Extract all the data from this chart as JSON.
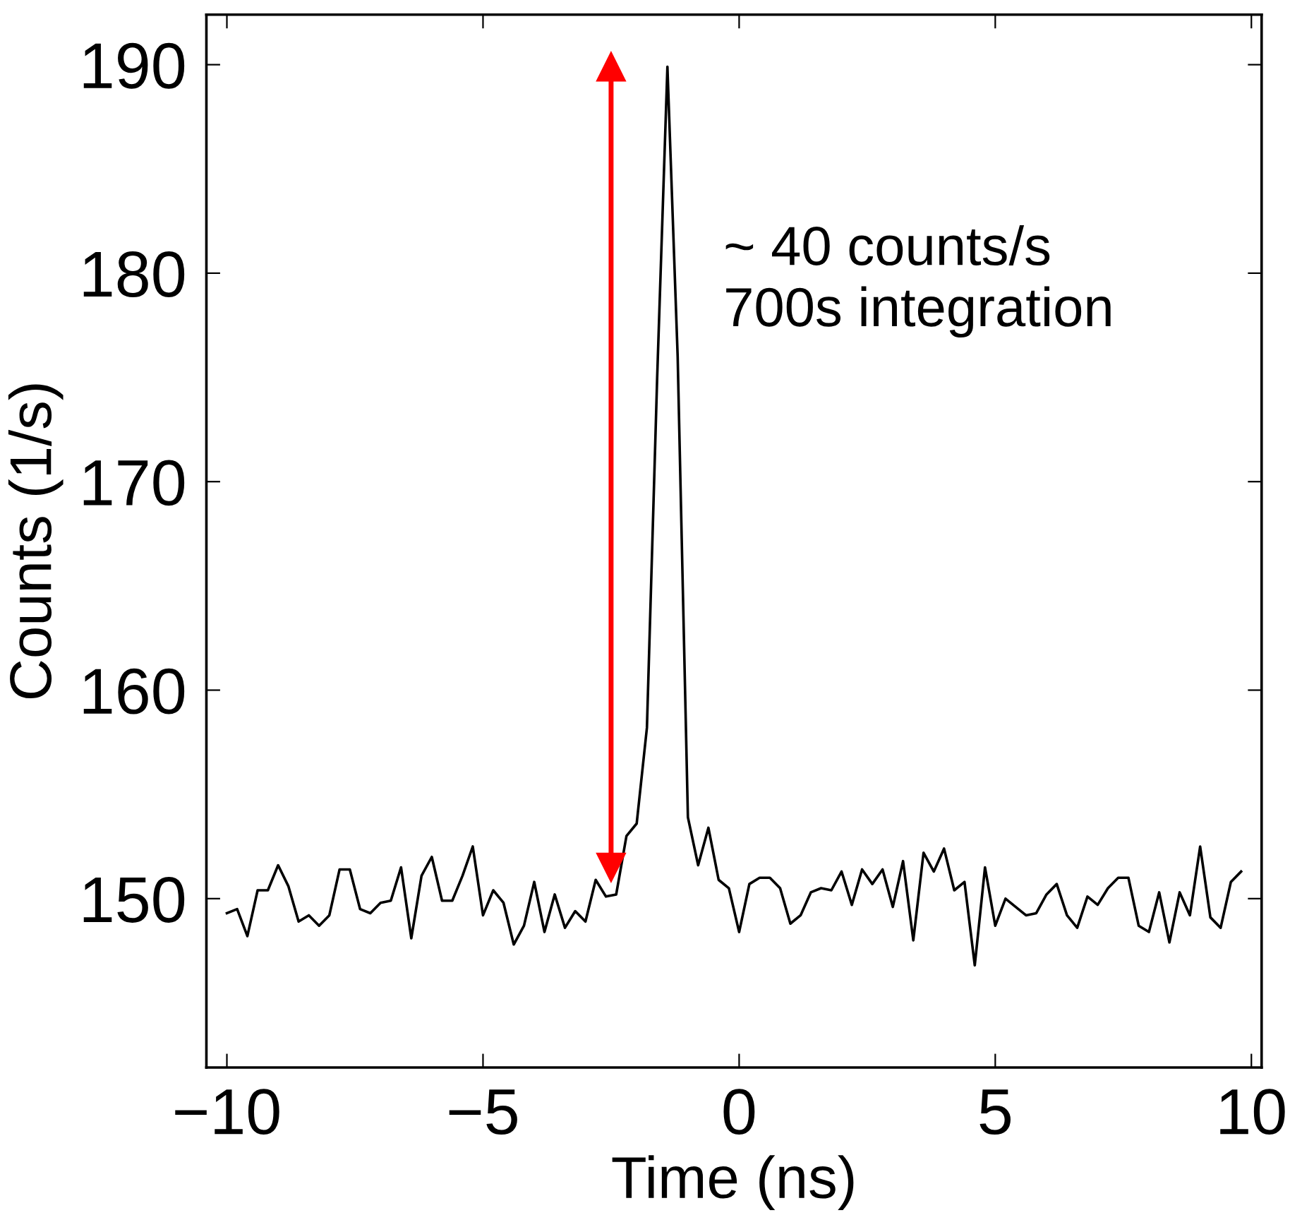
{
  "chart_data": {
    "type": "line",
    "xlabel": "Time (ns)",
    "ylabel": "Counts (1/s)",
    "x": [
      -10.0,
      -9.8,
      -9.6,
      -9.4,
      -9.2,
      -9.0,
      -8.8,
      -8.6,
      -8.4,
      -8.2,
      -8.0,
      -7.8,
      -7.6,
      -7.4,
      -7.2,
      -7.0,
      -6.8,
      -6.6,
      -6.4,
      -6.2,
      -6.0,
      -5.8,
      -5.6,
      -5.4,
      -5.2,
      -5.0,
      -4.8,
      -4.6,
      -4.4,
      -4.2,
      -4.0,
      -3.8,
      -3.6,
      -3.4,
      -3.2,
      -3.0,
      -2.8,
      -2.6,
      -2.4,
      -2.2,
      -2.0,
      -1.8,
      -1.6,
      -1.4,
      -1.2,
      -1.0,
      -0.8,
      -0.6,
      -0.4,
      -0.2,
      0.0,
      0.2,
      0.4,
      0.6,
      0.8,
      1.0,
      1.2,
      1.4,
      1.6,
      1.8,
      2.0,
      2.2,
      2.4,
      2.6,
      2.8,
      3.0,
      3.2,
      3.4,
      3.6,
      3.8,
      4.0,
      4.2,
      4.4,
      4.6,
      4.8,
      5.0,
      5.2,
      5.4,
      5.6,
      5.8,
      6.0,
      6.2,
      6.4,
      6.6,
      6.8,
      7.0,
      7.2,
      7.4,
      7.6,
      7.8,
      8.0,
      8.2,
      8.4,
      8.6,
      8.8,
      9.0,
      9.2,
      9.4,
      9.6,
      9.8
    ],
    "series": [
      {
        "color": "#000000",
        "values": [
          149.3,
          149.5,
          148.2,
          150.4,
          150.4,
          151.6,
          150.6,
          148.9,
          149.2,
          148.7,
          149.2,
          151.4,
          151.4,
          149.5,
          149.3,
          149.8,
          149.9,
          151.5,
          148.1,
          151.1,
          152.0,
          149.9,
          149.9,
          151.1,
          152.5,
          149.2,
          150.4,
          149.8,
          147.8,
          148.7,
          150.8,
          148.4,
          150.2,
          148.6,
          149.4,
          148.9,
          150.9,
          150.1,
          150.2,
          153.0,
          153.6,
          158.2,
          175,
          189.9,
          176,
          153.9,
          151.6,
          153.4,
          150.9,
          150.5,
          148.4,
          150.7,
          151.0,
          151.0,
          150.5,
          148.8,
          149.2,
          150.3,
          150.5,
          150.4,
          151.3,
          149.7,
          151.4,
          150.7,
          151.4,
          149.6,
          151.8,
          148.0,
          152.2,
          151.3,
          152.4,
          150.4,
          150.8,
          146.8,
          151.5,
          148.7,
          150.0,
          149.6,
          149.2,
          149.3,
          150.2,
          150.7,
          149.2,
          148.6,
          150.1,
          149.7,
          150.5,
          151.0,
          151.0,
          148.7,
          148.4,
          150.3,
          147.9,
          150.3,
          149.2,
          152.5,
          149.1,
          148.6,
          150.8,
          151.3
        ]
      },
      {
        "type": "line",
        "color": "#ff0000",
        "marker": "triangle",
        "x": [
          -2.5,
          -2.5
        ],
        "values": [
          151.5,
          189.9
        ]
      }
    ],
    "xlim": [
      -10.4,
      10.2
    ],
    "xticks": [
      {
        "value": -10,
        "label": "−10"
      },
      {
        "value": -5,
        "label": "−5"
      },
      0,
      5,
      10
    ],
    "ylim": [
      141.9,
      192.4
    ],
    "yticks": [
      150,
      160,
      170,
      180,
      190
    ],
    "grid": false,
    "legend": false,
    "annotations": [
      "~ 40 counts/s\n700s integration"
    ]
  }
}
